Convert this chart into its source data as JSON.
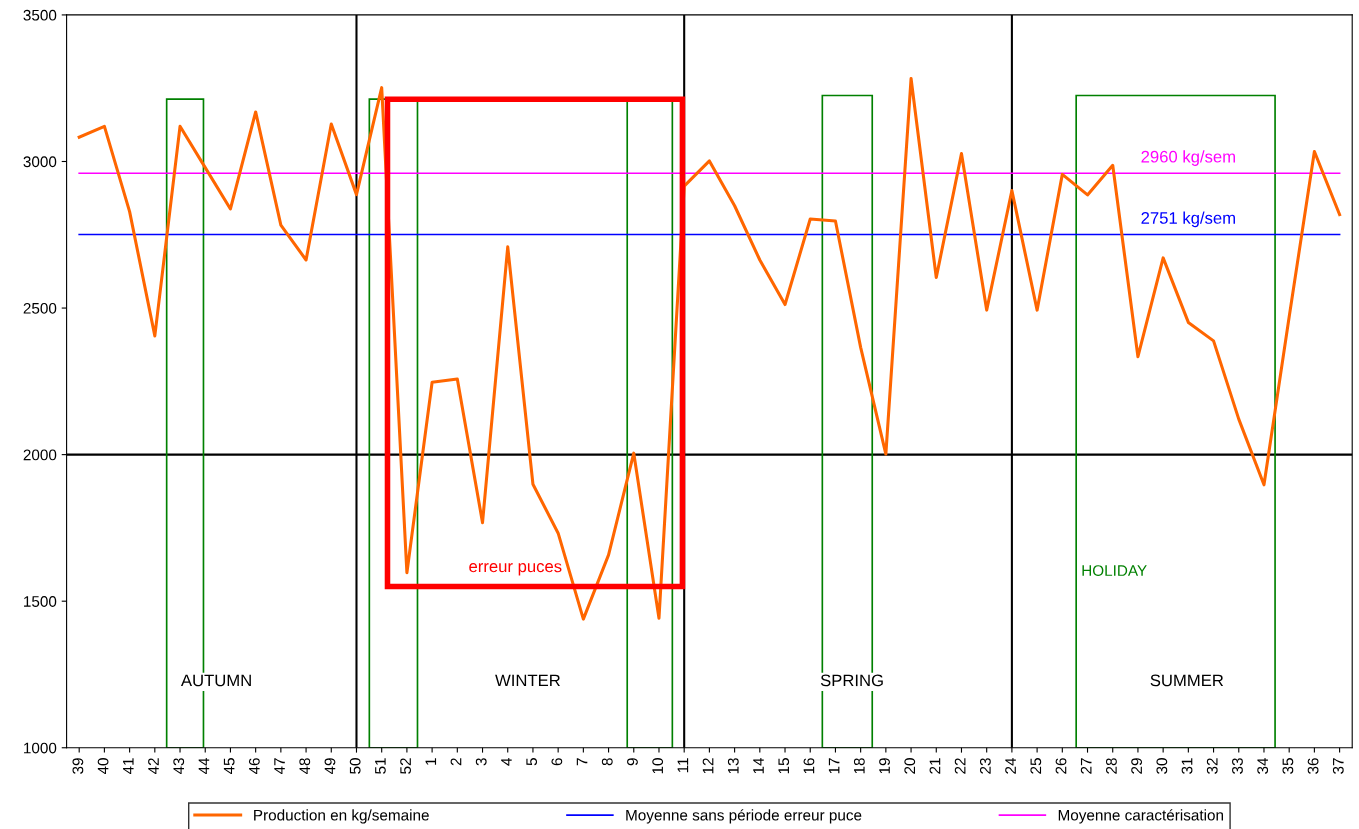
{
  "chart_data": {
    "type": "line",
    "categories": [
      "39",
      "40",
      "41",
      "42",
      "43",
      "44",
      "45",
      "46",
      "47",
      "48",
      "49",
      "50",
      "51",
      "52",
      "1",
      "2",
      "3",
      "4",
      "5",
      "6",
      "7",
      "8",
      "9",
      "10",
      "11",
      "12",
      "13",
      "14",
      "15",
      "16",
      "17",
      "18",
      "19",
      "20",
      "21",
      "22",
      "23",
      "24",
      "25",
      "26",
      "27",
      "28",
      "29",
      "30",
      "31",
      "32",
      "33",
      "34",
      "35",
      "36",
      "37"
    ],
    "series": [
      {
        "name": "Production en kg/semaine",
        "color": "#ff6600",
        "values": [
          3083,
          3120,
          2829,
          2405,
          3120,
          2979,
          2838,
          3169,
          2783,
          2664,
          3128,
          2887,
          3252,
          1597,
          2247,
          2258,
          1768,
          2709,
          1899,
          1732,
          1439,
          1658,
          2005,
          1442,
          2916,
          3002,
          2849,
          2664,
          2512,
          2804,
          2797,
          2366,
          2002,
          3283,
          2604,
          3027,
          2493,
          2901,
          2493,
          2956,
          2886,
          2987,
          2334,
          2671,
          2451,
          2388,
          2121,
          1897,
          2470,
          3034,
          2819
        ]
      },
      {
        "name": "Moyenne sans période erreur puce",
        "color": "#0000ff",
        "values": [
          2751,
          2751,
          2751,
          2751,
          2751,
          2751,
          2751,
          2751,
          2751,
          2751,
          2751,
          2751,
          2751,
          2751,
          2751,
          2751,
          2751,
          2751,
          2751,
          2751,
          2751,
          2751,
          2751,
          2751,
          2751,
          2751,
          2751,
          2751,
          2751,
          2751,
          2751,
          2751,
          2751,
          2751,
          2751,
          2751,
          2751,
          2751,
          2751,
          2751,
          2751,
          2751,
          2751,
          2751,
          2751,
          2751,
          2751,
          2751,
          2751,
          2751,
          2751
        ]
      },
      {
        "name": "Moyenne caractérisation",
        "color": "#ff00ff",
        "values": [
          2960,
          2960,
          2960,
          2960,
          2960,
          2960,
          2960,
          2960,
          2960,
          2960,
          2960,
          2960,
          2960,
          2960,
          2960,
          2960,
          2960,
          2960,
          2960,
          2960,
          2960,
          2960,
          2960,
          2960,
          2960,
          2960,
          2960,
          2960,
          2960,
          2960,
          2960,
          2960,
          2960,
          2960,
          2960,
          2960,
          2960,
          2960,
          2960,
          2960,
          2960,
          2960,
          2960,
          2960,
          2960,
          2960,
          2960,
          2960,
          2960,
          2960,
          2960
        ]
      }
    ],
    "ylim": [
      1000,
      3500
    ],
    "yticks": [
      1000,
      1500,
      2000,
      2500,
      3000,
      3500
    ],
    "ref_lines": [
      {
        "axis": "y",
        "value": 2000,
        "color": "#000000"
      },
      {
        "axis": "x",
        "value": "50",
        "color": "#000000"
      },
      {
        "axis": "x",
        "value": "11",
        "color": "#000000"
      },
      {
        "axis": "x",
        "value": "24",
        "color": "#000000"
      }
    ],
    "annotations": [
      {
        "text": "2960 kg/sem",
        "x": "31",
        "y": 2960
      },
      {
        "text": "2751 kg/sem",
        "x": "31",
        "y": 2751
      },
      "AUTUMN",
      "WINTER",
      "SPRING",
      "SUMMER",
      "HOLIDAY",
      "erreur puces"
    ],
    "legend": "bottom",
    "grid": false,
    "marker": "none",
    "line_style": "solid"
  }
}
